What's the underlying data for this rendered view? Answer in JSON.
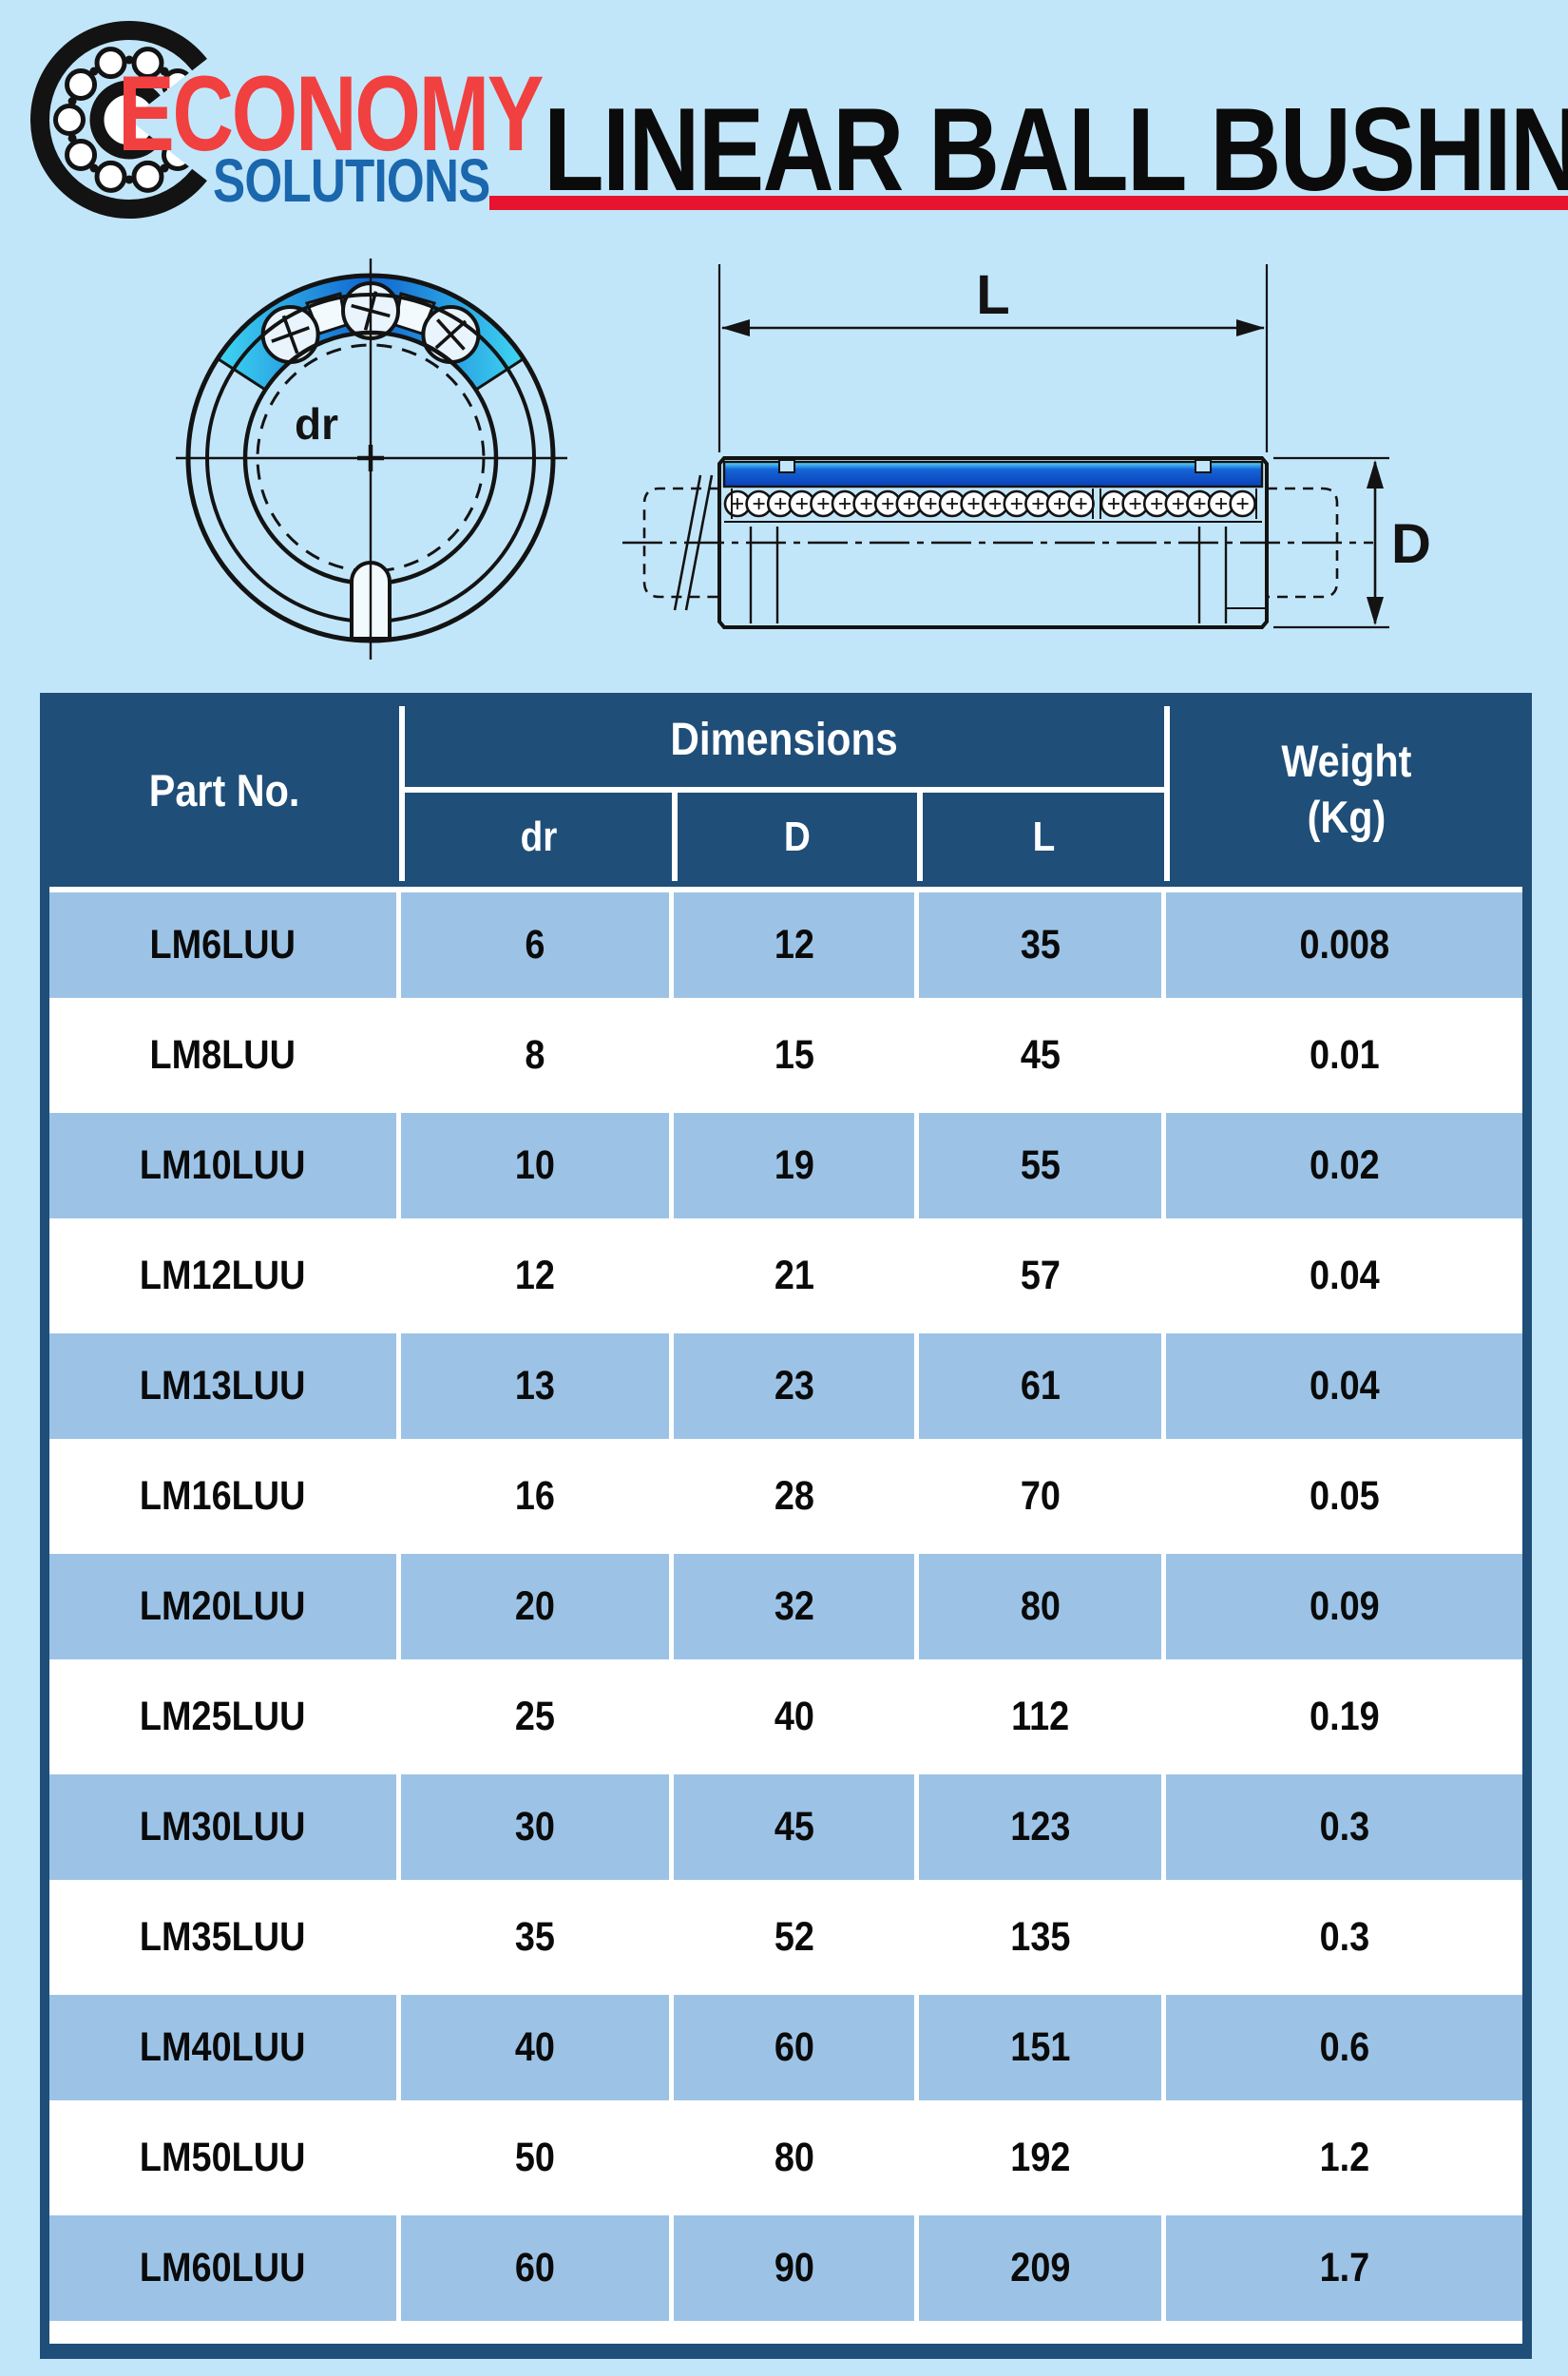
{
  "page": {
    "bg": "#c2e6f9",
    "navy": "#1f4e78",
    "row_blue": "#9cc3e6",
    "red": "#e8142f"
  },
  "logo": {
    "line1": "ECONOMY",
    "line2": "SOLUTIONS"
  },
  "header": {
    "title": "LINEAR BALL BUSHING"
  },
  "diagram": {
    "bore_label": "dr",
    "length_label": "L",
    "diameter_label": "D"
  },
  "table": {
    "col_part": "Part No.",
    "col_dimensions": "Dimensions",
    "col_dr": "dr",
    "col_d": "D",
    "col_l": "L",
    "col_weight1": "Weight",
    "col_weight2": "(Kg)",
    "rows": [
      {
        "part": "LM6LUU",
        "dr": "6",
        "d": "12",
        "l": "35",
        "weight": "0.008"
      },
      {
        "part": "LM8LUU",
        "dr": "8",
        "d": "15",
        "l": "45",
        "weight": "0.01"
      },
      {
        "part": "LM10LUU",
        "dr": "10",
        "d": "19",
        "l": "55",
        "weight": "0.02"
      },
      {
        "part": "LM12LUU",
        "dr": "12",
        "d": "21",
        "l": "57",
        "weight": "0.04"
      },
      {
        "part": "LM13LUU",
        "dr": "13",
        "d": "23",
        "l": "61",
        "weight": "0.04"
      },
      {
        "part": "LM16LUU",
        "dr": "16",
        "d": "28",
        "l": "70",
        "weight": "0.05"
      },
      {
        "part": "LM20LUU",
        "dr": "20",
        "d": "32",
        "l": "80",
        "weight": "0.09"
      },
      {
        "part": "LM25LUU",
        "dr": "25",
        "d": "40",
        "l": "112",
        "weight": "0.19"
      },
      {
        "part": "LM30LUU",
        "dr": "30",
        "d": "45",
        "l": "123",
        "weight": "0.3"
      },
      {
        "part": "LM35LUU",
        "dr": "35",
        "d": "52",
        "l": "135",
        "weight": "0.3"
      },
      {
        "part": "LM40LUU",
        "dr": "40",
        "d": "60",
        "l": "151",
        "weight": "0.6"
      },
      {
        "part": "LM50LUU",
        "dr": "50",
        "d": "80",
        "l": "192",
        "weight": "1.2"
      },
      {
        "part": "LM60LUU",
        "dr": "60",
        "d": "90",
        "l": "209",
        "weight": "1.7"
      }
    ]
  }
}
